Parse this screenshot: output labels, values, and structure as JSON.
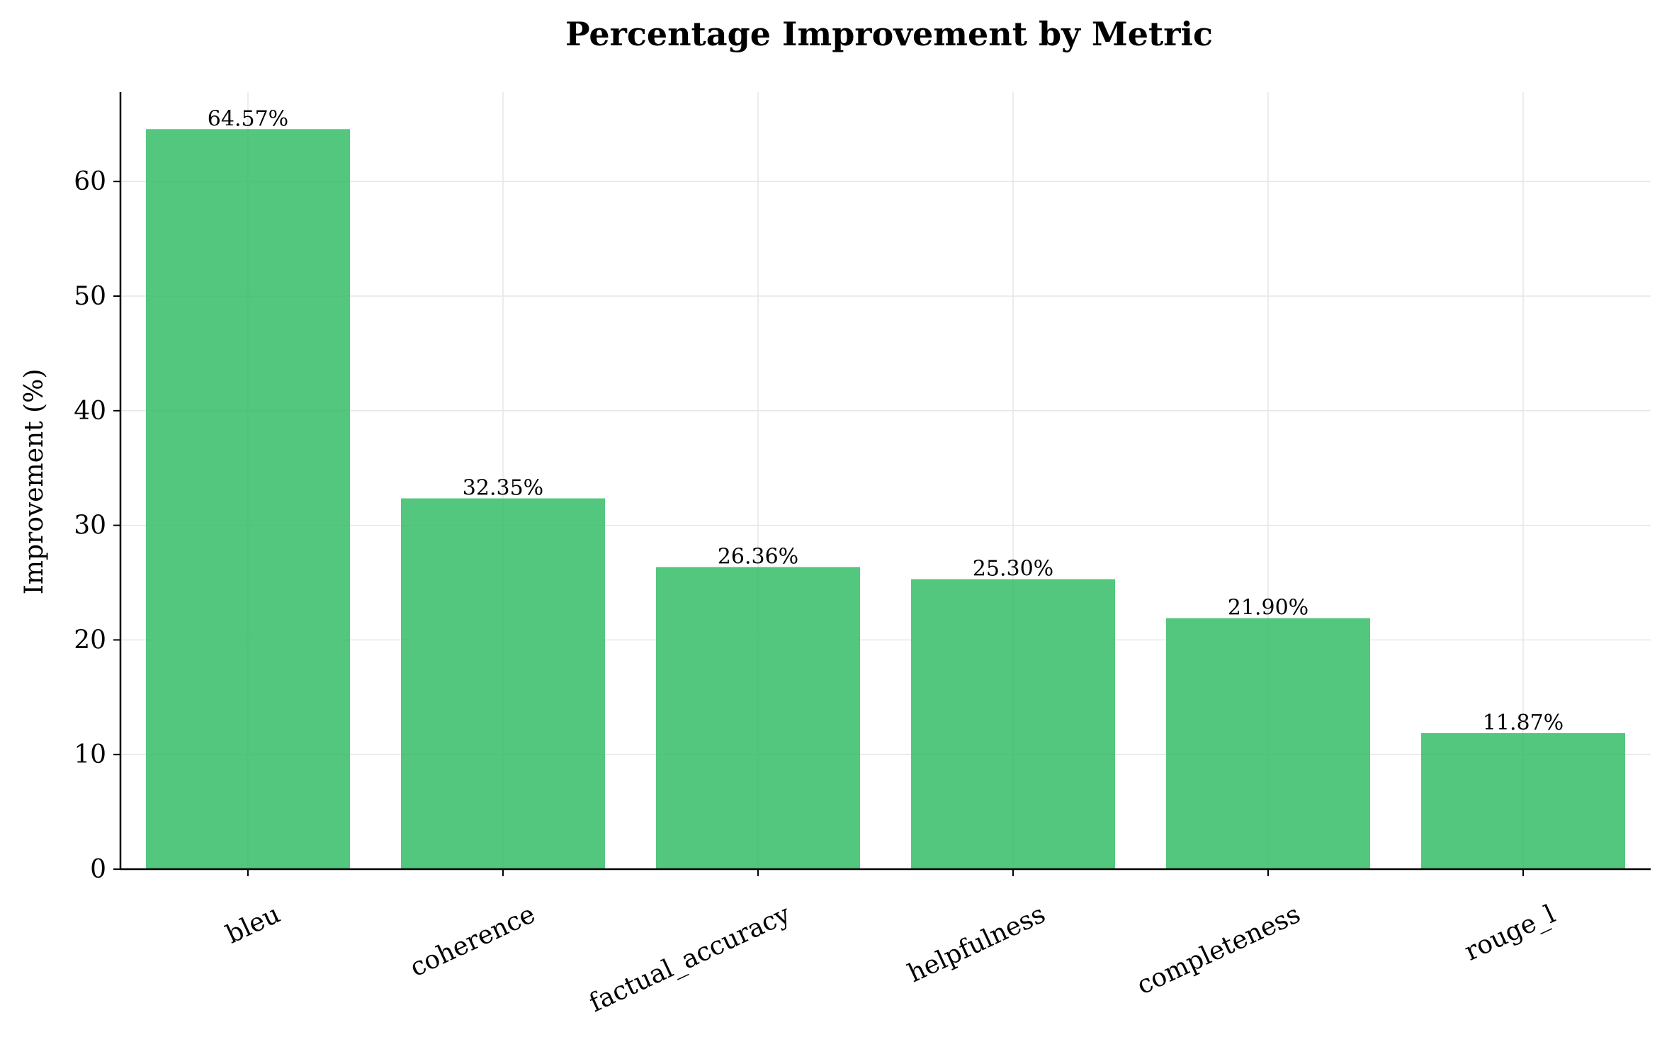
{
  "chart_data": {
    "type": "bar",
    "title": "Percentage Improvement by Metric",
    "xlabel": "",
    "ylabel": "Improvement (%)",
    "categories": [
      "bleu",
      "coherence",
      "factual_accuracy",
      "helpfulness",
      "completeness",
      "rouge_l"
    ],
    "values": [
      64.57,
      32.35,
      26.36,
      25.3,
      21.9,
      11.87
    ],
    "value_labels": [
      "64.57%",
      "32.35%",
      "26.36%",
      "25.30%",
      "21.90%",
      "11.87%"
    ],
    "ylim": [
      0,
      67.8
    ],
    "yticks": [
      0,
      10,
      20,
      30,
      40,
      50,
      60
    ],
    "grid": true,
    "bar_color": "#2ebb63",
    "xtick_rotation": -25
  }
}
